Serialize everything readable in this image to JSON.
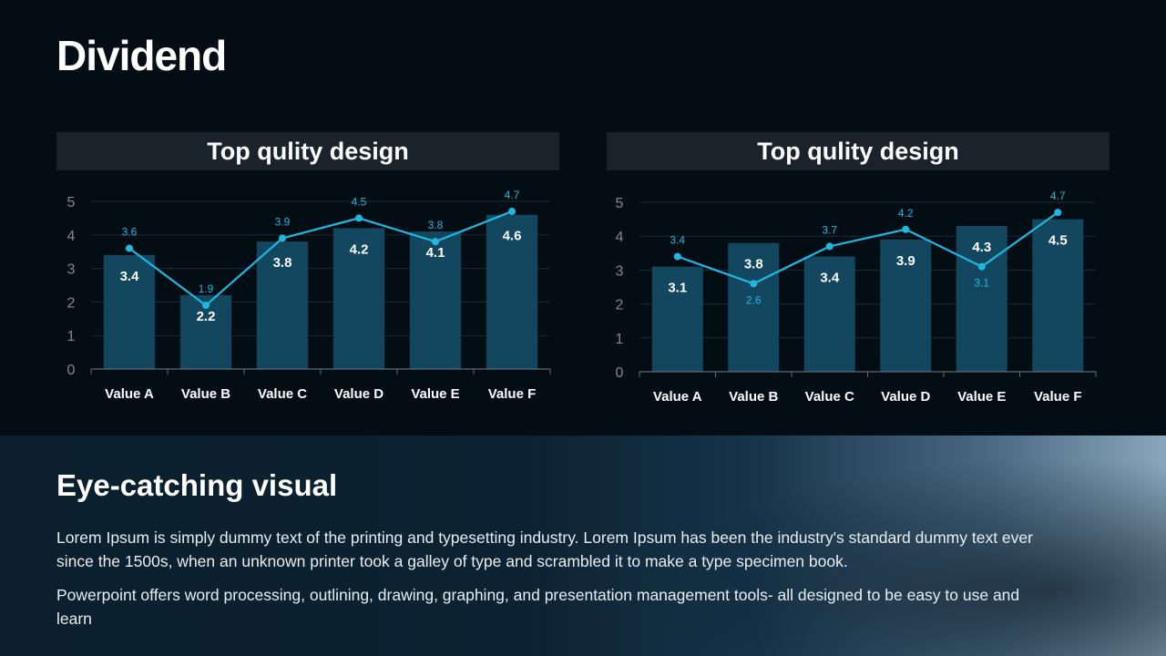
{
  "title": "Dividend",
  "chart_data": [
    {
      "type": "bar+line",
      "title": "Top qulity design",
      "categories": [
        "Value A",
        "Value B",
        "Value C",
        "Value D",
        "Value E",
        "Value F"
      ],
      "series": [
        {
          "name": "bar",
          "type": "bar",
          "values": [
            3.4,
            2.2,
            3.8,
            4.2,
            4.1,
            4.6
          ]
        },
        {
          "name": "line",
          "type": "line",
          "values": [
            3.6,
            1.9,
            3.9,
            4.5,
            3.8,
            4.7
          ]
        }
      ],
      "yticks": [
        0,
        1,
        2,
        3,
        4,
        5
      ],
      "ylim": [
        0,
        5
      ],
      "grid": true
    },
    {
      "type": "bar+line",
      "title": "Top qulity design",
      "categories": [
        "Value A",
        "Value B",
        "Value C",
        "Value D",
        "Value E",
        "Value F"
      ],
      "series": [
        {
          "name": "bar",
          "type": "bar",
          "values": [
            3.1,
            3.8,
            3.4,
            3.9,
            4.3,
            4.5
          ]
        },
        {
          "name": "line",
          "type": "line",
          "values": [
            3.4,
            2.6,
            3.7,
            4.2,
            3.1,
            4.7
          ]
        }
      ],
      "yticks": [
        0,
        1,
        2,
        3,
        4,
        5
      ],
      "ylim": [
        0,
        5
      ],
      "grid": true
    }
  ],
  "colors": {
    "bar": "#134760",
    "line": "#1fb8e0",
    "grid": "#1c2b35",
    "axis": "#5d6b75"
  },
  "bottom": {
    "heading": "Eye-catching visual",
    "paragraph1": "Lorem Ipsum is simply dummy text of the printing and typesetting industry. Lorem Ipsum has been the industry's standard dummy text ever since the 1500s, when an unknown printer took a galley of type and scrambled it to make a type specimen book.",
    "paragraph2": "Powerpoint offers word processing, outlining, drawing, graphing, and presentation management tools- all designed to be easy to use and learn"
  }
}
